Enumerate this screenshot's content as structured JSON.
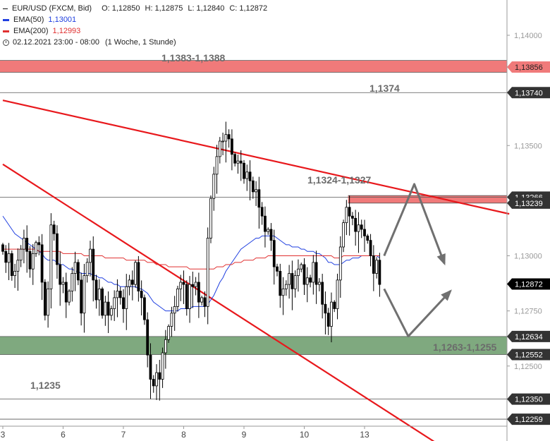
{
  "instrument": {
    "title": "EUR/USD (FXCM, Bid)",
    "ohlc": {
      "open": "O: 1,12850",
      "high": "H: 1,12875",
      "low": "L: 1,12840",
      "close": "C: 1,12872"
    },
    "range": "02.12.2021 23:00 - 08:00",
    "period": "(1 Woche, 1 Stunde)"
  },
  "legend": [
    {
      "name": "EMA(50)",
      "value": "1,13001",
      "color": "#1f3fe0"
    },
    {
      "name": "EMA(200)",
      "value": "1,12993",
      "color": "#e03030"
    }
  ],
  "annotations": {
    "resistance_zone": "1,1383-1,1388",
    "level_1374": "1,1374",
    "zone_1324": "1,1324-1,1327",
    "support_zone": "1,1263-1,1255",
    "level_1235": "1,1235"
  },
  "colors": {
    "candle": "#000000",
    "trendline": "#e8181c",
    "red_zone": "#f07a7a",
    "green_zone": "#7fa97f",
    "arrow": "#707070",
    "ema50": "#1f3fe0",
    "ema200": "#e03030"
  },
  "chart_data": {
    "type": "candlestick",
    "y_axis": {
      "ylim": [
        1.1216,
        1.1416
      ],
      "ticks": [
        {
          "value": 1.14,
          "label": "1,14000"
        },
        {
          "value": 1.135,
          "label": "1,13500"
        },
        {
          "value": 1.13,
          "label": "1,13000"
        },
        {
          "value": 1.1275,
          "label": "1,12750"
        },
        {
          "value": 1.125,
          "label": "1,12500"
        }
      ]
    },
    "x_axis": {
      "ticks": [
        "3",
        "6",
        "7",
        "8",
        "9",
        "10",
        "13"
      ],
      "tick_index": [
        0,
        20,
        40,
        60,
        80,
        100,
        120
      ]
    },
    "price_labels": [
      {
        "value": 1.13856,
        "label": "1,13856",
        "style": "red"
      },
      {
        "value": 1.1374,
        "label": "1,13740",
        "style": "dark"
      },
      {
        "value": 1.13266,
        "label": "1,13266",
        "style": "dark"
      },
      {
        "value": 1.13239,
        "label": "1,13239",
        "style": "dark"
      },
      {
        "value": 1.12872,
        "label": "1,12872",
        "style": "black"
      },
      {
        "value": 1.12634,
        "label": "1,12634",
        "style": "dark"
      },
      {
        "value": 1.12552,
        "label": "1,12552",
        "style": "dark"
      },
      {
        "value": 1.1235,
        "label": "1,12350",
        "style": "dark"
      },
      {
        "value": 1.12259,
        "label": "1,12259",
        "style": "dark"
      }
    ],
    "zones": [
      {
        "from": 1.13832,
        "to": 1.13886,
        "color": "red"
      },
      {
        "from": 1.13239,
        "to": 1.13273,
        "color": "red",
        "start_index": 115
      },
      {
        "from": 1.12552,
        "to": 1.12634,
        "color": "green"
      }
    ],
    "levels": [
      1.1374,
      1.13266,
      1.1235,
      1.12259
    ],
    "trendlines": [
      {
        "p1": [
          0,
          1.13705
        ],
        "p2": [
          168,
          1.1319
        ]
      },
      {
        "p1": [
          0,
          1.13415
        ],
        "p2": [
          153,
          1.1207
        ]
      }
    ],
    "scenario_arrows": [
      [
        [
          126.5,
          1.13
        ],
        [
          136.5,
          1.13325
        ],
        [
          146.5,
          1.12965
        ]
      ],
      [
        [
          126.5,
          1.1285
        ],
        [
          134.5,
          1.12635
        ],
        [
          148.5,
          1.1284
        ]
      ]
    ],
    "close": [
      1.1302,
      1.1297,
      1.1301,
      1.1291,
      1.1293,
      1.1298,
      1.1303,
      1.1308,
      1.1302,
      1.1294,
      1.1301,
      1.1306,
      1.1305,
      1.1288,
      1.1273,
      1.1285,
      1.1314,
      1.131,
      1.1296,
      1.1287,
      1.1288,
      1.1279,
      1.1284,
      1.1292,
      1.1297,
      1.1289,
      1.1274,
      1.1291,
      1.1297,
      1.1303,
      1.1289,
      1.128,
      1.1285,
      1.1273,
      1.1279,
      1.1273,
      1.1276,
      1.1281,
      1.1284,
      1.1281,
      1.1276,
      1.1286,
      1.1289,
      1.1287,
      1.1297,
      1.1284,
      1.1281,
      1.1271,
      1.1255,
      1.1244,
      1.1241,
      1.1247,
      1.1244,
      1.1256,
      1.1262,
      1.1268,
      1.1274,
      1.1277,
      1.1285,
      1.1288,
      1.1287,
      1.1276,
      1.1287,
      1.1286,
      1.1288,
      1.1279,
      1.1281,
      1.1277,
      1.1308,
      1.1326,
      1.1337,
      1.1345,
      1.1352,
      1.1352,
      1.1355,
      1.1353,
      1.1346,
      1.1342,
      1.1343,
      1.1342,
      1.1335,
      1.1338,
      1.1334,
      1.1329,
      1.133,
      1.1322,
      1.1318,
      1.1311,
      1.1312,
      1.1307,
      1.1295,
      1.1293,
      1.1282,
      1.1285,
      1.1287,
      1.1292,
      1.1285,
      1.1291,
      1.1294,
      1.1296,
      1.1287,
      1.129,
      1.1288,
      1.1297,
      1.1287,
      1.1288,
      1.1278,
      1.1274,
      1.1268,
      1.1279,
      1.1276,
      1.1289,
      1.1304,
      1.1315,
      1.1322,
      1.1318,
      1.1317,
      1.1311,
      1.1314,
      1.1312,
      1.1309,
      1.1307,
      1.13,
      1.1292,
      1.1298,
      1.1287
    ],
    "series": [
      {
        "name": "EMA(50)",
        "values": [
          1.1318,
          1.1316,
          1.1314,
          1.1312,
          1.131,
          1.1309,
          1.1308,
          1.1307,
          1.1306,
          1.1305,
          1.1304,
          1.1303,
          1.1302,
          1.1301,
          1.1299,
          1.1298,
          1.1298,
          1.1298,
          1.1297,
          1.1296,
          1.1296,
          1.1295,
          1.1294,
          1.1294,
          1.1293,
          1.1293,
          1.1292,
          1.1292,
          1.1292,
          1.1292,
          1.1291,
          1.1291,
          1.129,
          1.129,
          1.1289,
          1.1288,
          1.1288,
          1.1287,
          1.1287,
          1.1286,
          1.1286,
          1.1286,
          1.1286,
          1.1286,
          1.1286,
          1.1285,
          1.1285,
          1.1284,
          1.1283,
          1.1281,
          1.1279,
          1.1278,
          1.1277,
          1.1276,
          1.1275,
          1.1275,
          1.1275,
          1.1275,
          1.1275,
          1.1276,
          1.1276,
          1.1276,
          1.1276,
          1.1277,
          1.1277,
          1.1277,
          1.1277,
          1.1277,
          1.1278,
          1.128,
          1.1282,
          1.1285,
          1.1288,
          1.129,
          1.1293,
          1.1295,
          1.1297,
          1.1299,
          1.1301,
          1.1303,
          1.1304,
          1.1305,
          1.1306,
          1.1307,
          1.1308,
          1.1308,
          1.1309,
          1.1309,
          1.1309,
          1.1309,
          1.1309,
          1.1308,
          1.1307,
          1.1306,
          1.1305,
          1.1305,
          1.1304,
          1.1304,
          1.1304,
          1.1303,
          1.1303,
          1.1302,
          1.1302,
          1.1302,
          1.1301,
          1.1301,
          1.13,
          1.1299,
          1.1297,
          1.1297,
          1.1296,
          1.1296,
          1.1296,
          1.1297,
          1.1298,
          1.1298,
          1.1299,
          1.1299,
          1.1299,
          1.13,
          1.13,
          1.13,
          1.13,
          1.13,
          1.13,
          1.1299
        ]
      },
      {
        "name": "EMA(200)",
        "values": [
          1.1303,
          1.1303,
          1.1303,
          1.1303,
          1.1303,
          1.1303,
          1.1303,
          1.1303,
          1.1303,
          1.1303,
          1.1303,
          1.1303,
          1.1302,
          1.1302,
          1.1302,
          1.1302,
          1.1302,
          1.1302,
          1.1302,
          1.1302,
          1.1301,
          1.1301,
          1.1301,
          1.1301,
          1.1301,
          1.1301,
          1.1301,
          1.13,
          1.13,
          1.13,
          1.13,
          1.13,
          1.13,
          1.13,
          1.1299,
          1.1299,
          1.1299,
          1.1299,
          1.1299,
          1.1299,
          1.1299,
          1.1298,
          1.1298,
          1.1298,
          1.1298,
          1.1298,
          1.1298,
          1.1298,
          1.1297,
          1.1297,
          1.1297,
          1.1296,
          1.1296,
          1.1296,
          1.1296,
          1.1295,
          1.1295,
          1.1295,
          1.1295,
          1.1295,
          1.1295,
          1.1295,
          1.1294,
          1.1294,
          1.1294,
          1.1294,
          1.1294,
          1.1294,
          1.1294,
          1.1294,
          1.1294,
          1.1295,
          1.1295,
          1.1295,
          1.1296,
          1.1296,
          1.1296,
          1.1297,
          1.1297,
          1.1297,
          1.1298,
          1.1298,
          1.1298,
          1.1298,
          1.1299,
          1.1299,
          1.1299,
          1.1299,
          1.13,
          1.13,
          1.13,
          1.13,
          1.13,
          1.13,
          1.13,
          1.13,
          1.13,
          1.13,
          1.13,
          1.13,
          1.13,
          1.13,
          1.13,
          1.13,
          1.13,
          1.13,
          1.13,
          1.13,
          1.13,
          1.13,
          1.1299,
          1.1299,
          1.1299,
          1.13,
          1.13,
          1.13,
          1.13,
          1.13,
          1.13,
          1.13,
          1.13,
          1.13,
          1.13,
          1.13,
          1.13,
          1.13
        ]
      }
    ]
  }
}
